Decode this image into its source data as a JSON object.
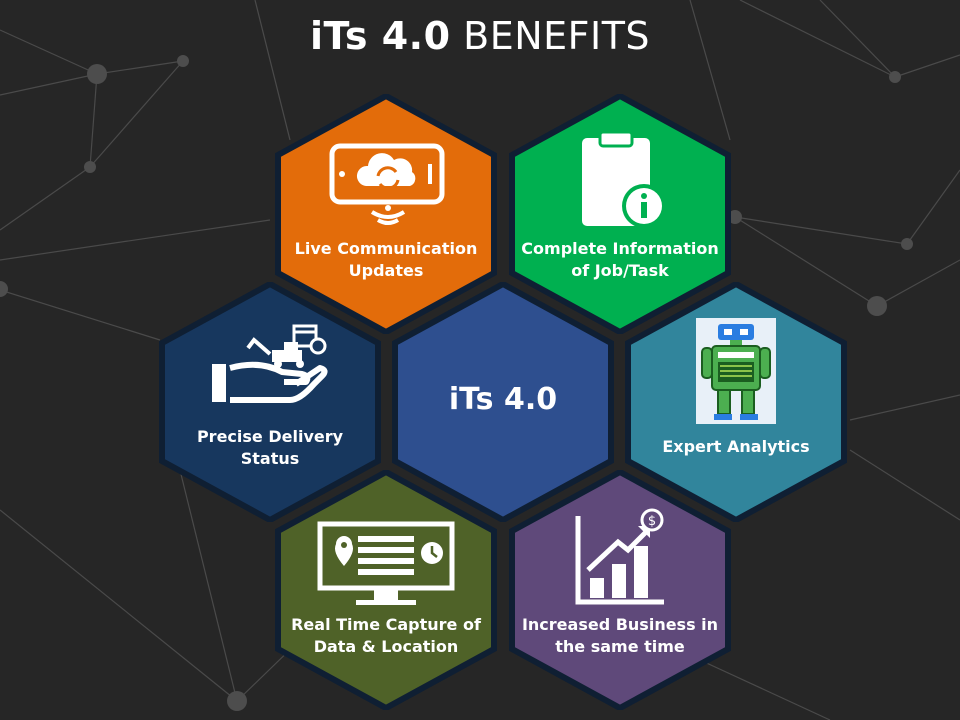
{
  "title": {
    "bold": "iTs 4.0",
    "light": "BENEFITS"
  },
  "colors": {
    "background": "#262626",
    "hex_border": "#0f1f33",
    "orange": "#e36c0a",
    "green": "#00b050",
    "navy": "#17375e",
    "center": "#2e4f8f",
    "teal": "#31859c",
    "olive": "#4f6228",
    "purple": "#5f497a"
  },
  "center": {
    "label": "iTs 4.0"
  },
  "benefits": [
    {
      "label_line1": "Live Communication",
      "label_line2": "Updates",
      "icon": "tablet-cloud-sync-icon"
    },
    {
      "label_line1": "Complete Information",
      "label_line2": "of Job/Task",
      "icon": "clipboard-info-icon"
    },
    {
      "label_line1": "Precise Delivery",
      "label_line2": "Status",
      "icon": "hand-delivery-icon"
    },
    {
      "label_line1": "Expert Analytics",
      "label_line2": "",
      "icon": "robot-icon"
    },
    {
      "label_line1": "Real Time Capture of",
      "label_line2": "Data & Location",
      "icon": "monitor-location-icon"
    },
    {
      "label_line1": "Increased Business in",
      "label_line2": "the same time",
      "icon": "growth-chart-icon"
    }
  ]
}
